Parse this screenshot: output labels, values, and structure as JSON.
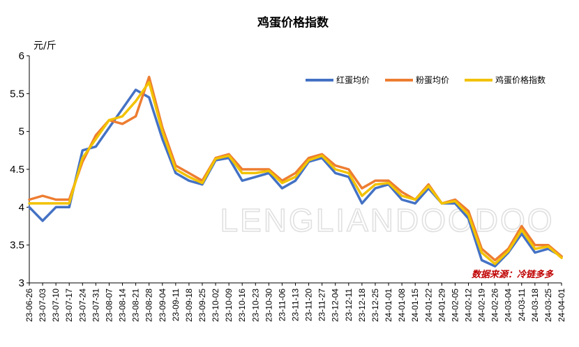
{
  "chart_data": {
    "type": "line",
    "title": "鸡蛋价格指数",
    "unit_label": "元/斤",
    "source_note": "数据来源：冷链多多",
    "source_color": "#c00000",
    "watermark_text": "LENGLIANDOODOO",
    "xlabel": "",
    "ylabel": "",
    "ylim": [
      3,
      6
    ],
    "ytick_labels": [
      "3",
      "3.5",
      "4",
      "4.5",
      "5",
      "5.5",
      "6"
    ],
    "x_tick_labels": [
      "23-06-26",
      "23-07-03",
      "23-07-10",
      "23-07-17",
      "23-07-24",
      "23-07-31",
      "23-08-07",
      "23-08-14",
      "23-08-21",
      "23-08-28",
      "23-09-04",
      "23-09-11",
      "23-09-18",
      "23-09-25",
      "23-10-02",
      "23-10-09",
      "23-10-16",
      "23-10-23",
      "23-10-30",
      "23-11-06",
      "23-11-13",
      "23-11-20",
      "23-11-27",
      "23-12-04",
      "23-12-11",
      "23-12-18",
      "23-12-25",
      "24-01-01",
      "24-01-08",
      "24-01-15",
      "24-01-22",
      "24-01-29",
      "24-02-05",
      "24-02-12",
      "24-02-19",
      "24-02-26",
      "24-03-04",
      "24-03-11",
      "24-03-18",
      "24-03-25",
      "24-04-01"
    ],
    "grid": false,
    "legend_position": "top-right",
    "series": [
      {
        "name": "红蛋均价",
        "color": "#4472c4",
        "values": [
          4.0,
          3.82,
          4.0,
          4.0,
          4.75,
          4.8,
          5.05,
          5.3,
          5.55,
          5.45,
          4.9,
          4.45,
          4.35,
          4.3,
          4.62,
          4.65,
          4.35,
          4.4,
          4.45,
          4.25,
          4.35,
          4.6,
          4.65,
          4.45,
          4.4,
          4.05,
          4.25,
          4.3,
          4.1,
          4.05,
          4.25,
          4.05,
          4.05,
          3.85,
          3.3,
          3.22,
          3.4,
          3.65,
          3.4,
          3.45,
          3.35
        ]
      },
      {
        "name": "粉蛋均价",
        "color": "#ed7d31",
        "values": [
          4.1,
          4.15,
          4.1,
          4.1,
          4.6,
          4.95,
          5.15,
          5.1,
          5.2,
          5.72,
          5.05,
          4.55,
          4.45,
          4.35,
          4.65,
          4.7,
          4.5,
          4.5,
          4.5,
          4.35,
          4.45,
          4.65,
          4.7,
          4.55,
          4.5,
          4.25,
          4.35,
          4.35,
          4.2,
          4.1,
          4.3,
          4.05,
          4.1,
          3.95,
          3.45,
          3.3,
          3.45,
          3.75,
          3.5,
          3.5,
          3.35
        ]
      },
      {
        "name": "鸡蛋价格指数",
        "color": "#f2c200",
        "values": [
          4.05,
          4.05,
          4.05,
          4.05,
          4.65,
          4.9,
          5.15,
          5.2,
          5.4,
          5.65,
          5.0,
          4.5,
          4.4,
          4.32,
          4.64,
          4.68,
          4.45,
          4.45,
          4.48,
          4.32,
          4.4,
          4.62,
          4.68,
          4.5,
          4.45,
          4.15,
          4.3,
          4.32,
          4.15,
          4.1,
          4.28,
          4.05,
          4.08,
          3.9,
          3.4,
          3.25,
          3.42,
          3.7,
          3.45,
          3.48,
          3.33
        ]
      }
    ]
  }
}
